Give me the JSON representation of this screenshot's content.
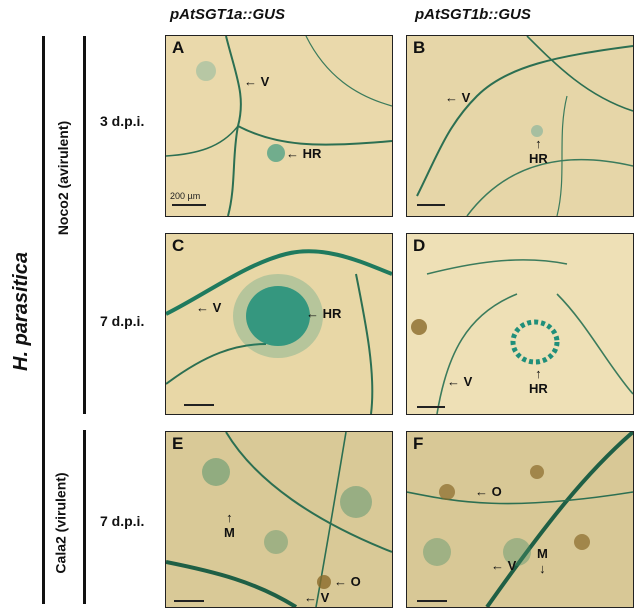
{
  "columns": [
    "pAtSGT1a::GUS",
    "pAtSGT1b::GUS"
  ],
  "side_label": "H. parasitica",
  "groups": [
    "Noco2 (avirulent)",
    "Cala2 (virulent)"
  ],
  "rows": [
    "3 d.p.i.",
    "7 d.p.i.",
    "7 d.p.i."
  ],
  "panels": {
    "A": {
      "letter": "A",
      "labels": [
        "V",
        "HR"
      ],
      "scale": "200 µm"
    },
    "B": {
      "letter": "B",
      "labels": [
        "V",
        "HR"
      ]
    },
    "C": {
      "letter": "C",
      "labels": [
        "V",
        "HR"
      ]
    },
    "D": {
      "letter": "D",
      "labels": [
        "V",
        "HR"
      ]
    },
    "E": {
      "letter": "E",
      "labels": [
        "M",
        "O",
        "V"
      ]
    },
    "F": {
      "letter": "F",
      "labels": [
        "O",
        "V",
        "M"
      ]
    }
  },
  "colors": {
    "tissue": "#e9d7a8",
    "stain": "#1f8f7a",
    "vein": "#2c6f52"
  }
}
